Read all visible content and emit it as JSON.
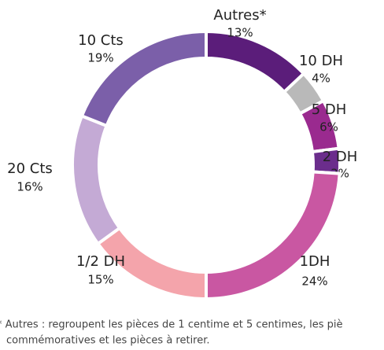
{
  "chart_data": {
    "type": "donut",
    "categories": [
      "Autres*",
      "10 DH",
      "5 DH",
      "2 DH",
      "1DH",
      "1/2 DH",
      "20 Cts",
      "10 Cts"
    ],
    "values": [
      13,
      4,
      6,
      3,
      24,
      15,
      16,
      19
    ],
    "value_labels": [
      "13%",
      "4%",
      "6%",
      "3%",
      "24%",
      "15%",
      "16%",
      "19%"
    ],
    "colors": [
      "#5b1d7a",
      "#b9b9b9",
      "#9a2a8f",
      "#6b2d8c",
      "#c957a2",
      "#f4a4ab",
      "#c4aad5",
      "#7b5fa9"
    ],
    "footnote": [
      "* Autres : regroupent les pièces de 1 centime et 5 centimes, les piè",
      "commémoratives et les pièces à retirer."
    ]
  }
}
